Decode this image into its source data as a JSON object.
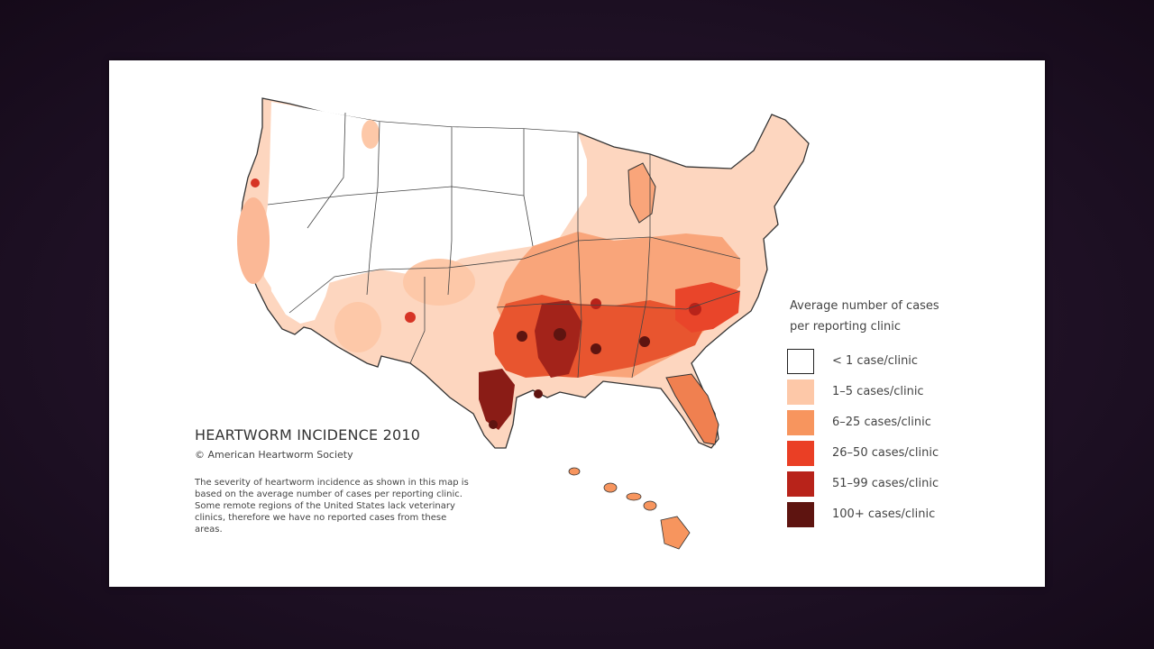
{
  "map": {
    "title": "HEARTWORM INCIDENCE 2010",
    "copyright": "© American Heartworm Society",
    "description": "The severity of heartworm incidence as shown in this map is based on the average number of cases per reporting clinic.  Some remote regions of the United States lack veterinary clinics, therefore we have no reported cases from these areas.",
    "legend": {
      "title_line1": "Average number of cases",
      "title_line2": "per reporting clinic",
      "items": [
        {
          "label": "< 1 case/clinic",
          "color": "#ffffff"
        },
        {
          "label": "1–5  cases/clinic",
          "color": "#fdc8a8"
        },
        {
          "label": "6–25  cases/clinic",
          "color": "#f7955e"
        },
        {
          "label": "26–50  cases/clinic",
          "color": "#ea3f25"
        },
        {
          "label": "51–99  cases/clinic",
          "color": "#b8231a"
        },
        {
          "label": "100+ cases/clinic",
          "color": "#5e1410"
        }
      ]
    }
  }
}
